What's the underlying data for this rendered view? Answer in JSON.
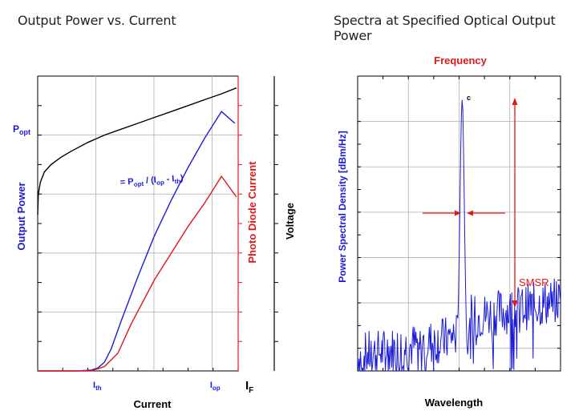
{
  "panels": {
    "left_title": "Output Power vs. Current",
    "right_title": "Spectra at Specified Optical Output Power"
  },
  "colors": {
    "blue": "#1a1adb",
    "red": "#e01818",
    "black": "#000000",
    "grid": "#b0b0b0"
  },
  "chart_data": [
    {
      "type": "line",
      "title": "Output Power vs. Current",
      "xlabel": "Current",
      "ylabel": "Output Power",
      "y2label": "Photo Diode Current",
      "y3label": "Voltage",
      "x_unit_label": {
        "main": "I",
        "sub": "F"
      },
      "xlim": [
        0,
        6
      ],
      "ylim": [
        0,
        10
      ],
      "x_tick_labels": [
        {
          "x": 1.8,
          "main": "I",
          "sub": "th"
        },
        {
          "x": 5.3,
          "main": "I",
          "sub": "op"
        }
      ],
      "y_tick_labels": [
        {
          "y": 8.1,
          "main": "P",
          "sub": "opt"
        }
      ],
      "annotation": {
        "prefix": "= P",
        "sub1": "opt",
        "mid": " / (I",
        "sub2": "op",
        "dash": " - I",
        "sub3": "th",
        "suffix": ")"
      },
      "grid": true,
      "series": [
        {
          "color": "black",
          "x": [
            0,
            0.02,
            0.08,
            0.2,
            0.4,
            0.7,
            1.0,
            1.5,
            2.0,
            2.5,
            3.0,
            3.5,
            4.0,
            4.5,
            5.0,
            5.5,
            5.95
          ],
          "y": [
            5.3,
            6.0,
            6.4,
            6.75,
            7.0,
            7.25,
            7.45,
            7.75,
            8.0,
            8.2,
            8.4,
            8.6,
            8.8,
            9.0,
            9.2,
            9.4,
            9.6
          ]
        },
        {
          "color": "blue",
          "x": [
            0,
            1.2,
            1.6,
            1.8,
            2.0,
            2.2,
            2.5,
            3.0,
            3.5,
            4.0,
            4.5,
            5.0,
            5.5,
            5.9
          ],
          "y": [
            0,
            0,
            0.03,
            0.1,
            0.3,
            0.75,
            1.7,
            3.2,
            4.6,
            5.8,
            6.9,
            7.9,
            8.8,
            8.4
          ]
        },
        {
          "color": "red",
          "x": [
            0,
            1.6,
            2.0,
            2.4,
            2.8,
            3.5,
            4.0,
            4.5,
            5.0,
            5.5,
            5.95
          ],
          "y": [
            0,
            0,
            0.15,
            0.6,
            1.6,
            3.1,
            4.0,
            4.9,
            5.7,
            6.6,
            5.9
          ]
        }
      ]
    },
    {
      "type": "line",
      "title": "Spectra at Specified Optical Output Power",
      "xlabel": "Wavelength",
      "ylabel": "Power Spectral Density [dBm/Hz]",
      "top_label": "Frequency",
      "xlim": [
        0,
        100
      ],
      "ylim": [
        0,
        100
      ],
      "peak_label": "c",
      "smsr_label": "SMSR",
      "grid": true,
      "series": [
        {
          "name": "",
          "color": "blue",
          "peak_x": 51.5,
          "peak_y": 92,
          "noise_floor_low": 5,
          "noise_floor_high": 20,
          "side_mode_level": 22
        }
      ]
    }
  ]
}
